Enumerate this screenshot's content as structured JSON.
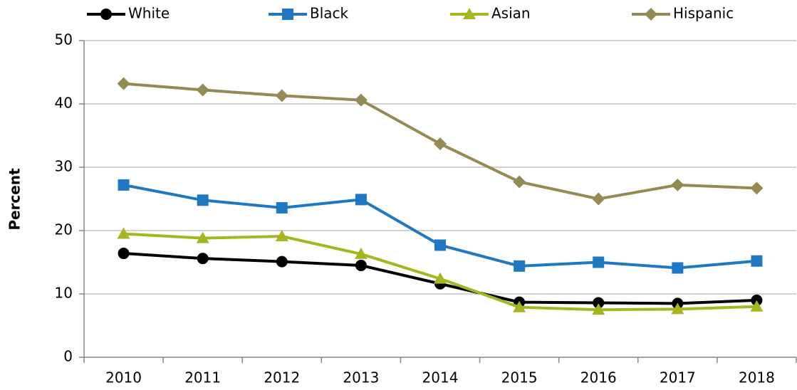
{
  "chart_data": {
    "type": "line",
    "y_label": "Percent",
    "categories": [
      "2010",
      "2011",
      "2012",
      "2013",
      "2014",
      "2015",
      "2016",
      "2017",
      "2018"
    ],
    "series": [
      {
        "name": "White",
        "color": "#000000",
        "marker": "circle",
        "values": [
          16.4,
          15.6,
          15.1,
          14.5,
          11.6,
          8.7,
          8.6,
          8.5,
          9.0
        ]
      },
      {
        "name": "Black",
        "color": "#1f78c1",
        "marker": "square",
        "values": [
          27.2,
          24.8,
          23.6,
          24.9,
          17.7,
          14.4,
          15.0,
          14.1,
          15.2
        ]
      },
      {
        "name": "Asian",
        "color": "#a5b61f",
        "marker": "triangle",
        "values": [
          19.5,
          18.8,
          19.1,
          16.3,
          12.4,
          7.9,
          7.5,
          7.6,
          8.0
        ]
      },
      {
        "name": "Hispanic",
        "color": "#948a54",
        "marker": "diamond",
        "values": [
          43.2,
          42.2,
          41.3,
          40.6,
          33.7,
          27.7,
          25.0,
          27.2,
          26.7
        ]
      }
    ],
    "ylim": [
      0,
      50
    ],
    "yticks": [
      0,
      10,
      20,
      30,
      40,
      50
    ],
    "grid": true,
    "legend": "top"
  }
}
